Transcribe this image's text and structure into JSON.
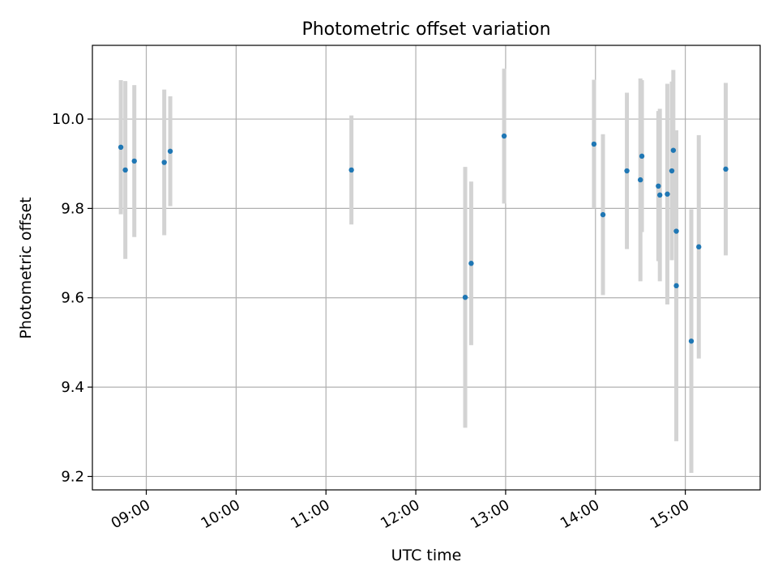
{
  "chart_data": {
    "type": "scatter",
    "title": "Photometric offset variation",
    "xlabel": "UTC time",
    "ylabel": "Photometric offset",
    "x_ticks": [
      "09:00",
      "10:00",
      "11:00",
      "12:00",
      "13:00",
      "14:00",
      "15:00"
    ],
    "y_ticks": [
      "9.2",
      "9.4",
      "9.6",
      "9.8",
      "10.0"
    ],
    "xlim": [
      "08:24",
      "15:50"
    ],
    "ylim": [
      9.17,
      10.165
    ],
    "grid": true,
    "point_color": "#1f77b4",
    "errorbar_color": "#d3d3d3",
    "points": [
      {
        "x": "08:43",
        "y": 9.937,
        "err": 0.15
      },
      {
        "x": "08:46",
        "y": 9.886,
        "err": 0.199
      },
      {
        "x": "08:52",
        "y": 9.906,
        "err": 0.17
      },
      {
        "x": "09:12",
        "y": 9.903,
        "err": 0.163
      },
      {
        "x": "09:16",
        "y": 9.928,
        "err": 0.123
      },
      {
        "x": "11:17",
        "y": 9.886,
        "err": 0.122
      },
      {
        "x": "12:33",
        "y": 9.601,
        "err": 0.292
      },
      {
        "x": "12:37",
        "y": 9.677,
        "err": 0.183
      },
      {
        "x": "12:59",
        "y": 9.962,
        "err": 0.151
      },
      {
        "x": "13:59",
        "y": 9.944,
        "err": 0.144
      },
      {
        "x": "14:05",
        "y": 9.786,
        "err": 0.18
      },
      {
        "x": "14:21",
        "y": 9.884,
        "err": 0.175
      },
      {
        "x": "14:30",
        "y": 9.864,
        "err": 0.227
      },
      {
        "x": "14:31",
        "y": 9.917,
        "err": 0.17
      },
      {
        "x": "14:42",
        "y": 9.85,
        "err": 0.168
      },
      {
        "x": "14:43",
        "y": 9.83,
        "err": 0.193
      },
      {
        "x": "14:48",
        "y": 9.832,
        "err": 0.247
      },
      {
        "x": "14:51",
        "y": 9.884,
        "err": 0.2
      },
      {
        "x": "14:52",
        "y": 9.93,
        "err": 0.18
      },
      {
        "x": "14:54",
        "y": 9.749,
        "err": 0.198
      },
      {
        "x": "14:54",
        "y": 9.627,
        "err": 0.348
      },
      {
        "x": "15:04",
        "y": 9.503,
        "err": 0.295
      },
      {
        "x": "15:09",
        "y": 9.714,
        "err": 0.25
      },
      {
        "x": "15:27",
        "y": 9.888,
        "err": 0.193
      }
    ]
  }
}
